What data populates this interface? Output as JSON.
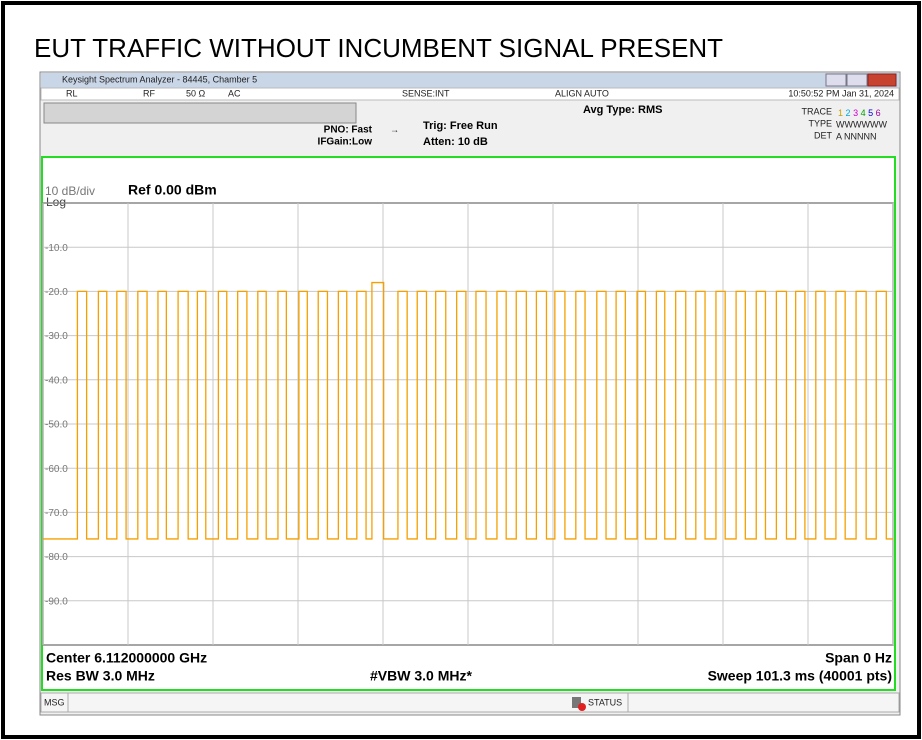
{
  "ui": {
    "title": "EUT TRAFFIC WITHOUT INCUMBENT SIGNAL PRESENT",
    "window_title": "Keysight Spectrum Analyzer - 84445, Chamber 5",
    "toolbar": [
      "RL",
      "RF",
      "50 Ω",
      "AC",
      "SENSE:INT",
      "ALIGN AUTO"
    ],
    "timestamp": "10:50:52 PM Jan 31, 2024",
    "avg_type": "Avg Type: RMS",
    "pno": "PNO: Fast",
    "ifgain": "IFGain:Low",
    "trig": "Trig: Free Run",
    "atten": "Atten: 10 dB",
    "trace_label": "TRACE",
    "trace_numbers": [
      "1",
      "2",
      "3",
      "4",
      "5",
      "6"
    ],
    "type_label": "TYPE",
    "type_value": "WWWWWW",
    "det_label": "DET",
    "det_value": "A NNNNN",
    "scale": "10 dB/div",
    "log": "Log",
    "ref": "Ref 0.00 dBm",
    "center": "Center 6.112000000 GHz",
    "span": "Span 0 Hz",
    "res_bw": "Res BW 3.0 MHz",
    "vbw": "#VBW 3.0 MHz*",
    "sweep": "Sweep  101.3 ms (40001 pts)",
    "msg": "MSG",
    "status": "STATUS"
  },
  "chart_data": {
    "type": "line",
    "color": "#f5a000",
    "grid": true,
    "xlim": [
      0,
      101.3
    ],
    "xticks": [
      0,
      10.13,
      20.26,
      30.39,
      40.52,
      50.65,
      60.78,
      70.91,
      81.04,
      91.17,
      101.3
    ],
    "ylim": [
      -100,
      0
    ],
    "yticks": [
      {
        "value": -10,
        "label": "-10.0"
      },
      {
        "value": -20,
        "label": "-20.0"
      },
      {
        "value": -30,
        "label": "-30.0"
      },
      {
        "value": -40,
        "label": "-40.0"
      },
      {
        "value": -50,
        "label": "-50.0"
      },
      {
        "value": -60,
        "label": "-60.0"
      },
      {
        "value": -70,
        "label": "-70.0"
      },
      {
        "value": -80,
        "label": "-80.0"
      },
      {
        "value": -90,
        "label": "-90.0"
      }
    ],
    "x": [
      0,
      4.1,
      4.1,
      5.2,
      5.2,
      6.6,
      6.6,
      7.6,
      7.6,
      8.8,
      8.8,
      9.9,
      9.9,
      11.3,
      11.3,
      12.4,
      12.4,
      13.7,
      13.7,
      14.7,
      14.7,
      16.1,
      16.1,
      17.3,
      17.3,
      18.4,
      18.4,
      19.4,
      19.4,
      20.9,
      20.9,
      21.9,
      21.9,
      23.2,
      23.2,
      24.3,
      24.3,
      25.6,
      25.6,
      26.6,
      26.6,
      28.0,
      28.0,
      29.0,
      29.0,
      30.5,
      30.5,
      31.5,
      31.5,
      32.8,
      32.8,
      33.9,
      33.9,
      35.2,
      35.2,
      36.2,
      36.2,
      37.4,
      37.4,
      38.5,
      38.5,
      39.2,
      39.2,
      40.6,
      40.6,
      42.3,
      42.3,
      43.4,
      43.4,
      44.6,
      44.6,
      45.7,
      45.7,
      46.8,
      46.8,
      48.0,
      48.0,
      49.3,
      49.3,
      50.4,
      50.4,
      51.6,
      51.6,
      52.8,
      52.8,
      54.1,
      54.1,
      55.2,
      55.2,
      56.4,
      56.4,
      57.6,
      57.6,
      58.8,
      58.8,
      60.0,
      60.0,
      61.0,
      61.0,
      62.2,
      62.2,
      63.5,
      63.5,
      64.6,
      64.6,
      66.0,
      66.0,
      67.1,
      67.1,
      68.3,
      68.3,
      69.4,
      69.4,
      70.8,
      70.8,
      71.8,
      71.8,
      73.1,
      73.1,
      74.1,
      74.1,
      75.4,
      75.4,
      76.6,
      76.6,
      77.8,
      77.8,
      78.9,
      78.9,
      80.2,
      80.2,
      81.3,
      81.3,
      82.6,
      82.6,
      83.7,
      83.7,
      85.0,
      85.0,
      86.1,
      86.1,
      87.4,
      87.4,
      88.6,
      88.6,
      89.7,
      89.7,
      90.8,
      90.8,
      92.1,
      92.1,
      93.2,
      93.2,
      94.5,
      94.5,
      95.6,
      95.6,
      96.9,
      96.9,
      98.1,
      98.1,
      99.3,
      99.3,
      100.5,
      100.5,
      101.3
    ],
    "values": [
      -76,
      -76,
      -20,
      -20,
      -76,
      -76,
      -20,
      -20,
      -76,
      -76,
      -20,
      -20,
      -76,
      -76,
      -20,
      -20,
      -76,
      -76,
      -20,
      -20,
      -76,
      -76,
      -20,
      -20,
      -76,
      -76,
      -20,
      -20,
      -76,
      -76,
      -20,
      -20,
      -76,
      -76,
      -20,
      -20,
      -76,
      -76,
      -20,
      -20,
      -76,
      -76,
      -20,
      -20,
      -76,
      -76,
      -20,
      -20,
      -76,
      -76,
      -20,
      -20,
      -76,
      -76,
      -20,
      -20,
      -76,
      -76,
      -20,
      -20,
      -76,
      -76,
      -18,
      -18,
      -76,
      -76,
      -20,
      -20,
      -76,
      -76,
      -20,
      -20,
      -76,
      -76,
      -20,
      -20,
      -76,
      -76,
      -20,
      -20,
      -76,
      -76,
      -20,
      -20,
      -76,
      -76,
      -20,
      -20,
      -76,
      -76,
      -20,
      -20,
      -76,
      -76,
      -20,
      -20,
      -76,
      -76,
      -20,
      -20,
      -76,
      -76,
      -20,
      -20,
      -76,
      -76,
      -20,
      -20,
      -76,
      -76,
      -20,
      -20,
      -76,
      -76,
      -20,
      -20,
      -76,
      -76,
      -20,
      -20,
      -76,
      -76,
      -20,
      -20,
      -76,
      -76,
      -20,
      -20,
      -76,
      -76,
      -20,
      -20,
      -76,
      -76,
      -20,
      -20,
      -76,
      -76,
      -20,
      -20,
      -76,
      -76,
      -20,
      -20,
      -76,
      -76,
      -20,
      -20,
      -76,
      -76,
      -20,
      -20,
      -76,
      -76,
      -20,
      -20,
      -76,
      -76,
      -20,
      -20,
      -76,
      -76,
      -20,
      -20,
      -76,
      -76
    ]
  }
}
